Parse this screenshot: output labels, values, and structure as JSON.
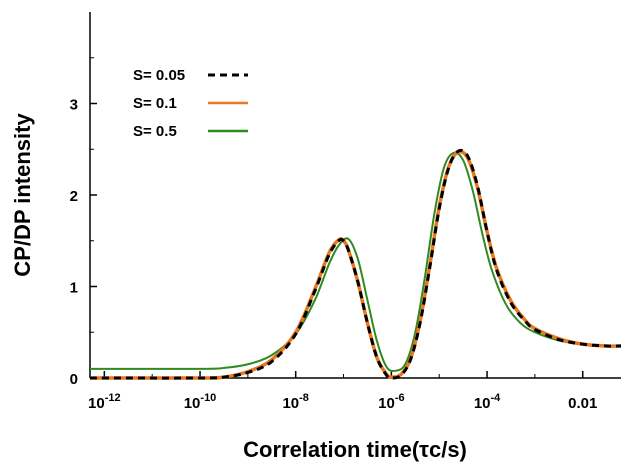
{
  "chart_data": {
    "type": "line",
    "title": "",
    "xlabel": "Correlation time(τc/s)",
    "ylabel": "CP/DP intensity",
    "xscale": "log",
    "xlim_log10": [
      -12.3,
      -1.2
    ],
    "ylim": [
      0,
      4
    ],
    "x_ticks": [
      {
        "log10": -12,
        "label_base": "10",
        "label_exp": "-12"
      },
      {
        "log10": -10,
        "label_base": "10",
        "label_exp": "-10"
      },
      {
        "log10": -8,
        "label_base": "10",
        "label_exp": "-8"
      },
      {
        "log10": -6,
        "label_base": "10",
        "label_exp": "-6"
      },
      {
        "log10": -4,
        "label_base": "10",
        "label_exp": "-4"
      },
      {
        "log10": -2,
        "label_base": "0.01",
        "label_exp": ""
      }
    ],
    "y_ticks": [
      {
        "value": 0,
        "label": "0"
      },
      {
        "value": 1,
        "label": "1"
      },
      {
        "value": 2,
        "label": "2"
      },
      {
        "value": 3,
        "label": "3"
      }
    ],
    "grid": false,
    "legend_position": "top-left",
    "series": [
      {
        "name": "S= 0.05",
        "color": "#000000",
        "dash": "dashed",
        "log10_x": [
          -12.3,
          -10.0,
          -9.5,
          -9.0,
          -8.5,
          -8.0,
          -7.6,
          -7.3,
          -7.1,
          -7.0,
          -6.9,
          -6.7,
          -6.5,
          -6.3,
          -6.1,
          -6.0,
          -5.8,
          -5.6,
          -5.4,
          -5.2,
          -5.0,
          -4.8,
          -4.6,
          -4.4,
          -4.2,
          -4.0,
          -3.8,
          -3.5,
          -3.2,
          -3.0,
          -2.5,
          -2.0,
          -1.5,
          -1.2
        ],
        "y": [
          0.0,
          0.0,
          0.01,
          0.06,
          0.18,
          0.48,
          0.95,
          1.35,
          1.5,
          1.5,
          1.4,
          1.05,
          0.6,
          0.22,
          0.03,
          0.0,
          0.03,
          0.2,
          0.6,
          1.2,
          1.85,
          2.3,
          2.48,
          2.42,
          2.1,
          1.6,
          1.18,
          0.82,
          0.62,
          0.53,
          0.42,
          0.37,
          0.35,
          0.35
        ]
      },
      {
        "name": "S= 0.1",
        "color": "#e87722",
        "dash": "solid",
        "log10_x": [
          -12.3,
          -10.0,
          -9.5,
          -9.0,
          -8.5,
          -8.0,
          -7.6,
          -7.3,
          -7.1,
          -7.0,
          -6.9,
          -6.7,
          -6.5,
          -6.3,
          -6.1,
          -6.0,
          -5.8,
          -5.6,
          -5.4,
          -5.2,
          -5.0,
          -4.8,
          -4.6,
          -4.4,
          -4.2,
          -4.0,
          -3.8,
          -3.5,
          -3.2,
          -3.0,
          -2.5,
          -2.0,
          -1.5,
          -1.2
        ],
        "y": [
          0.0,
          0.0,
          0.01,
          0.07,
          0.2,
          0.5,
          0.97,
          1.37,
          1.51,
          1.5,
          1.4,
          1.05,
          0.6,
          0.22,
          0.04,
          0.01,
          0.04,
          0.21,
          0.62,
          1.22,
          1.87,
          2.31,
          2.47,
          2.4,
          2.08,
          1.6,
          1.2,
          0.84,
          0.63,
          0.54,
          0.43,
          0.37,
          0.35,
          0.35
        ]
      },
      {
        "name": "S= 0.5",
        "color": "#2e8b1e",
        "dash": "solid",
        "log10_x": [
          -12.3,
          -10.0,
          -9.5,
          -9.0,
          -8.5,
          -8.0,
          -7.6,
          -7.3,
          -7.1,
          -6.9,
          -6.7,
          -6.5,
          -6.3,
          -6.1,
          -5.9,
          -5.7,
          -5.5,
          -5.3,
          -5.1,
          -4.9,
          -4.7,
          -4.5,
          -4.3,
          -4.1,
          -3.9,
          -3.6,
          -3.3,
          -3.0,
          -2.5,
          -2.0,
          -1.5,
          -1.2
        ],
        "y": [
          0.1,
          0.1,
          0.11,
          0.15,
          0.25,
          0.48,
          0.85,
          1.25,
          1.45,
          1.52,
          1.3,
          0.85,
          0.4,
          0.12,
          0.08,
          0.16,
          0.5,
          1.1,
          1.8,
          2.3,
          2.46,
          2.38,
          2.05,
          1.58,
          1.18,
          0.8,
          0.6,
          0.5,
          0.41,
          0.37,
          0.35,
          0.35
        ]
      }
    ]
  }
}
